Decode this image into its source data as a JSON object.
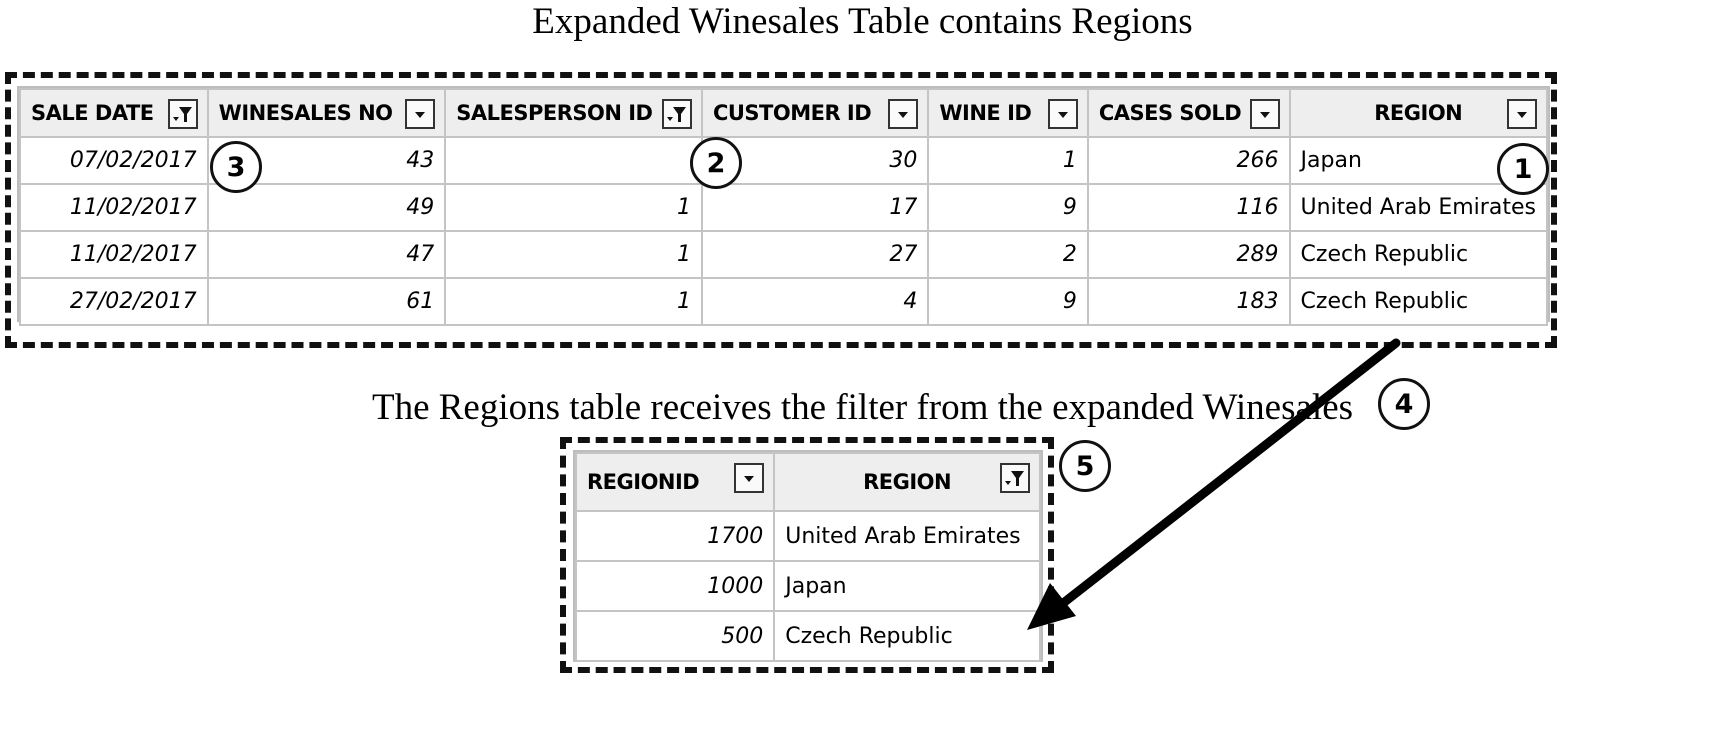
{
  "top_title": "Expanded Winesales Table contains Regions",
  "bottom_title": "The Regions table receives the filter from the expanded Winesales",
  "winesales": {
    "headers": [
      "SALE DATE",
      "WINESALES NO",
      "SALESPERSON ID",
      "CUSTOMER ID",
      "WINE ID",
      "CASES SOLD",
      "REGION"
    ],
    "header_buttons": [
      "filter-active",
      "dropdown",
      "filter-active",
      "dropdown",
      "dropdown",
      "dropdown",
      "dropdown"
    ],
    "rows": [
      [
        "07/02/2017",
        "43",
        "",
        "30",
        "1",
        "266",
        "Japan"
      ],
      [
        "11/02/2017",
        "49",
        "1",
        "17",
        "9",
        "116",
        "United Arab Emirates"
      ],
      [
        "11/02/2017",
        "47",
        "1",
        "27",
        "2",
        "289",
        "Czech Republic"
      ],
      [
        "27/02/2017",
        "61",
        "1",
        "4",
        "9",
        "183",
        "Czech Republic"
      ]
    ]
  },
  "regions": {
    "headers": [
      "REGIONID",
      "REGION"
    ],
    "header_buttons": [
      "dropdown",
      "filter-active"
    ],
    "rows": [
      [
        "1700",
        "United Arab Emirates"
      ],
      [
        "1000",
        "Japan"
      ],
      [
        "500",
        "Czech Republic"
      ]
    ]
  },
  "callouts": [
    "1",
    "2",
    "3",
    "4",
    "5"
  ],
  "icons": {
    "filter": "filter-icon",
    "dropdown": "dropdown-arrow-icon"
  }
}
